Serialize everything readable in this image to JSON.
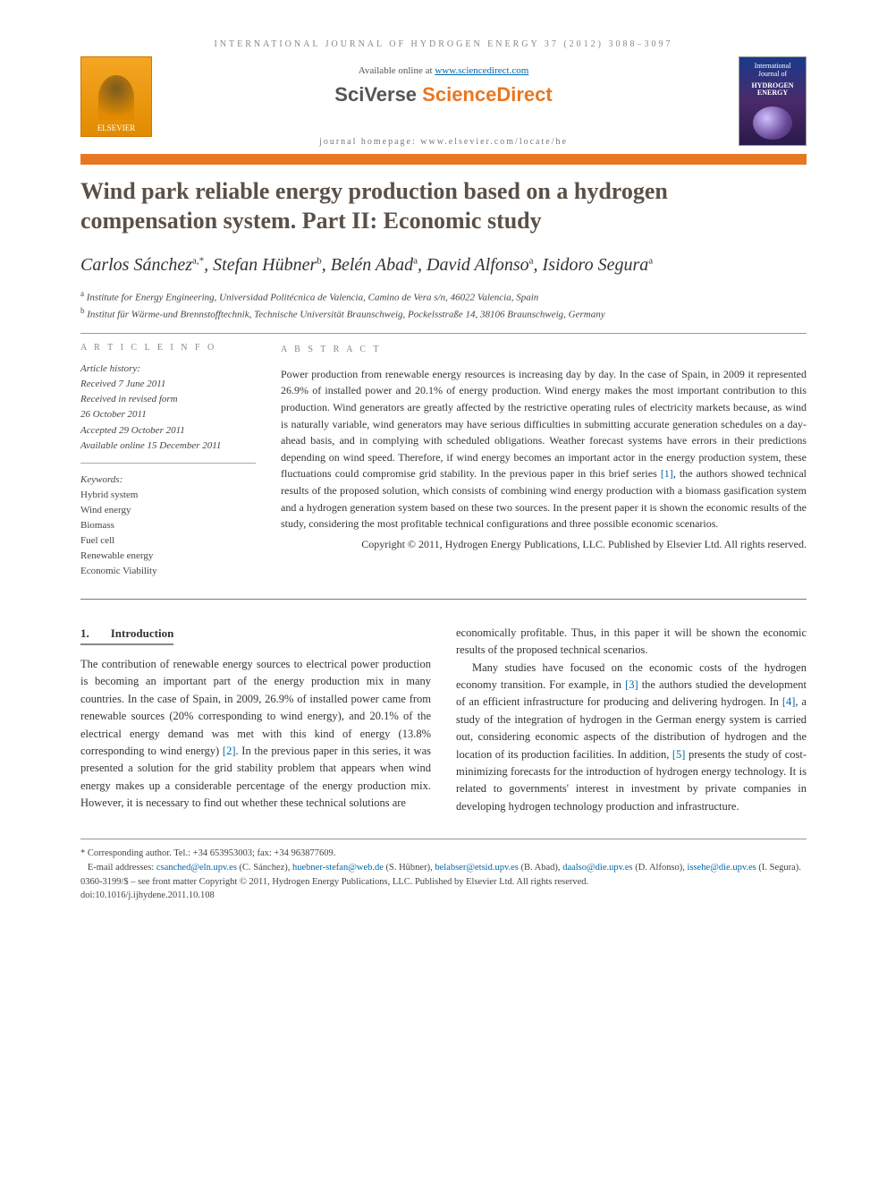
{
  "running_head": "INTERNATIONAL JOURNAL OF HYDROGEN ENERGY 37 (2012) 3088–3097",
  "header": {
    "elsevier": "ELSEVIER",
    "available_pre": "Available online at ",
    "available_link": "www.sciencedirect.com",
    "sciverse_a": "SciVerse ",
    "sciverse_b": "ScienceDirect",
    "homepage": "journal homepage: www.elsevier.com/locate/he",
    "cover_title": "HYDROGEN ENERGY",
    "cover_sup": "International Journal of"
  },
  "title": "Wind park reliable energy production based on a hydrogen compensation system. Part II: Economic study",
  "authors_html": "Carlos Sánchez",
  "authors": [
    {
      "name": "Carlos Sánchez",
      "sup": "a,*"
    },
    {
      "name": "Stefan Hübner",
      "sup": "b"
    },
    {
      "name": "Belén Abad",
      "sup": "a"
    },
    {
      "name": "David Alfonso",
      "sup": "a"
    },
    {
      "name": "Isidoro Segura",
      "sup": "a"
    }
  ],
  "affiliations": [
    {
      "sup": "a",
      "text": "Institute for Energy Engineering, Universidad Politécnica de Valencia, Camino de Vera s/n, 46022 Valencia, Spain"
    },
    {
      "sup": "b",
      "text": "Institut für Wärme-und Brennstofftechnik, Technische Universität Braunschweig, Pockelsstraße 14, 38106 Braunschweig, Germany"
    }
  ],
  "labels": {
    "article_info": "A R T I C L E   I N F O",
    "abstract": "A B S T R A C T",
    "history_h": "Article history:",
    "keywords_h": "Keywords:"
  },
  "history": [
    "Received 7 June 2011",
    "Received in revised form",
    "26 October 2011",
    "Accepted 29 October 2011",
    "Available online 15 December 2011"
  ],
  "keywords": [
    "Hybrid system",
    "Wind energy",
    "Biomass",
    "Fuel cell",
    "Renewable energy",
    "Economic Viability"
  ],
  "abstract": {
    "p1a": "Power production from renewable energy resources is increasing day by day. In the case of Spain, in 2009 it represented 26.9% of installed power and 20.1% of energy production. Wind energy makes the most important contribution to this production. Wind generators are greatly affected by the restrictive operating rules of electricity markets because, as wind is naturally variable, wind generators may have serious difficulties in submitting accurate generation schedules on a day-ahead basis, and in complying with scheduled obligations. Weather forecast systems have errors in their predictions depending on wind speed. Therefore, if wind energy becomes an important actor in the energy production system, these fluctuations could compromise grid stability. In the previous paper in this brief series ",
    "ref1": "[1]",
    "p1b": ", the authors showed technical results of the proposed solution, which consists of combining wind energy production with a biomass gasification system and a hydrogen generation system based on these two sources. In the present paper it is shown the economic results of the study, considering the most profitable technical configurations and three possible economic scenarios.",
    "copyright": "Copyright © 2011, Hydrogen Energy Publications, LLC. Published by Elsevier Ltd. All rights reserved."
  },
  "section1": {
    "num": "1.",
    "title": "Introduction"
  },
  "body": {
    "col1a": "The contribution of renewable energy sources to electrical power production is becoming an important part of the energy production mix in many countries. In the case of Spain, in 2009, 26.9% of installed power came from renewable sources (20% corresponding to wind energy), and 20.1% of the electrical energy demand was met with this kind of energy (13.8% corresponding to wind energy) ",
    "ref2": "[2]",
    "col1b": ". In the previous paper in this series, it was presented a solution for the grid stability problem that appears when wind energy makes up a considerable percentage of the energy production mix. However, it is necessary to find out whether these technical solutions are",
    "col2a": "economically profitable. Thus, in this paper it will be shown the economic results of the proposed technical scenarios.",
    "col2b_a": "Many studies have focused on the economic costs of the hydrogen economy transition. For example, in ",
    "ref3": "[3]",
    "col2b_b": " the authors studied the development of an efficient infrastructure for producing and delivering hydrogen. In ",
    "ref4": "[4]",
    "col2b_c": ", a study of the integration of hydrogen in the German energy system is carried out, considering economic aspects of the distribution of hydrogen and the location of its production facilities. In addition, ",
    "ref5": "[5]",
    "col2b_d": " presents the study of cost-minimizing forecasts for the introduction of hydrogen energy technology. It is related to governments' interest in investment by private companies in developing hydrogen technology production and infrastructure."
  },
  "footnotes": {
    "corr": "* Corresponding author. Tel.: +34 653953003; fax: +34 963877609.",
    "emails_label": "E-mail addresses: ",
    "emails": [
      {
        "addr": "csanched@eln.upv.es",
        "who": " (C. Sánchez), "
      },
      {
        "addr": "huebner-stefan@web.de",
        "who": " (S. Hübner), "
      },
      {
        "addr": "belabser@etsid.upv.es",
        "who": " (B. Abad), "
      },
      {
        "addr": "daalso@die.upv.es",
        "who": " (D. Alfonso), "
      },
      {
        "addr": "issehe@die.upv.es",
        "who": " (I. Segura)."
      }
    ],
    "rights": "0360-3199/$ – see front matter Copyright © 2011, Hydrogen Energy Publications, LLC. Published by Elsevier Ltd. All rights reserved.",
    "doi": "doi:10.1016/j.ijhydene.2011.10.108"
  },
  "colors": {
    "orange": "#e87722",
    "link": "#0066aa",
    "title": "#5a5048"
  }
}
